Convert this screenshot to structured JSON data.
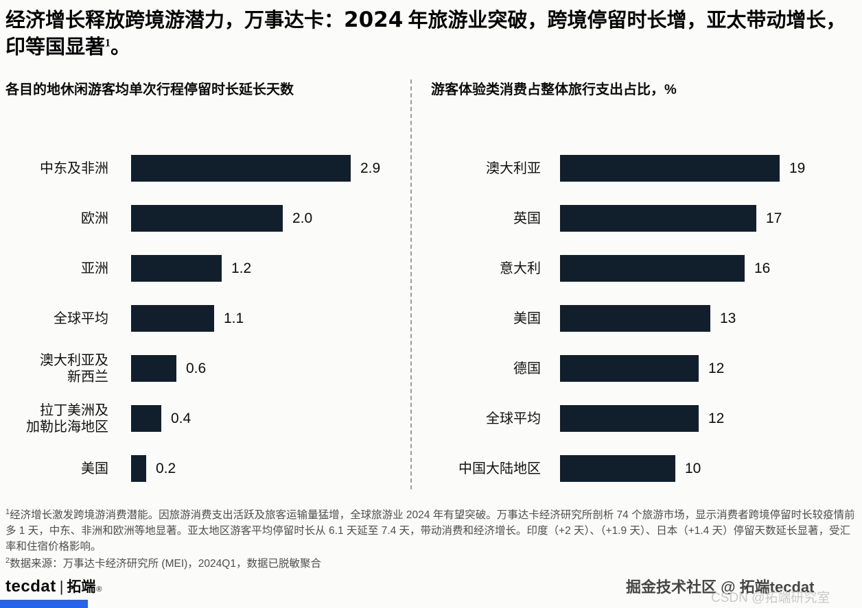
{
  "title": {
    "before_year": "经济增长释放跨境游潜力，万事达卡：",
    "year": "2024",
    "after_year": " 年旅游业突破，跨境停留时长增，亚太带动增长，印等国显著",
    "footnote_marker": "1",
    "suffix": "。"
  },
  "chart_data": [
    {
      "type": "bar",
      "orientation": "horizontal",
      "title": "各目的地休闲游客均单次行程停留时长延长天数",
      "categories": [
        "中东及非洲",
        "欧洲",
        "亚洲",
        "全球平均",
        "澳大利亚及\n新西兰",
        "拉丁美洲及\n加勒比海地区",
        "美国"
      ],
      "values": [
        2.9,
        2.0,
        1.2,
        1.1,
        0.6,
        0.4,
        0.2
      ],
      "value_labels": [
        "2.9",
        "2.0",
        "1.2",
        "1.1",
        "0.6",
        "0.4",
        "0.2"
      ],
      "xlim": [
        0,
        2.9
      ],
      "unit": "天",
      "bar_color": "#101f2b",
      "grid": false,
      "legend": "none"
    },
    {
      "type": "bar",
      "orientation": "horizontal",
      "title": "游客体验类消费占整体旅行支出占比，%",
      "categories": [
        "澳大利亚",
        "英国",
        "意大利",
        "美国",
        "德国",
        "全球平均",
        "中国大陆地区"
      ],
      "values": [
        19,
        17,
        16,
        13,
        12,
        12,
        10
      ],
      "value_labels": [
        "19",
        "17",
        "16",
        "13",
        "12",
        "12",
        "10"
      ],
      "xlim": [
        0,
        19
      ],
      "unit": "%",
      "bar_color": "#101f2b",
      "grid": false,
      "legend": "none"
    }
  ],
  "footnotes": [
    {
      "marker": "1",
      "text": "经济增长激发跨境游消费潜能。因旅游消费支出活跃及旅客运输量猛增，全球旅游业 2024 年有望突破。万事达卡经济研究所剖析 74 个旅游市场，显示消费者跨境停留时长较疫情前多 1 天，中东、非洲和欧洲等地显著。亚太地区游客平均停留时长从 6.1 天延至 7.4 天，带动消费和经济增长。印度（+2 天）、（+1.9 天）、日本（+1.4 天）停留天数延长显著，受汇率和住宿价格影响。"
    },
    {
      "marker": "2",
      "text": "数据来源：万事达卡经济研究所 (MEI)，2024Q1，数据已脱敏聚合"
    }
  ],
  "footer": {
    "logo_text": "tecdat",
    "logo_separator": "|",
    "logo_cn": "拓端",
    "logo_reg": "®"
  },
  "watermarks": {
    "wm1": "掘金技术社区 @ 拓端tecdat",
    "wm2": "CSDN @拓端研究室"
  },
  "colors": {
    "bar": "#101f2b",
    "accent_blue": "#2563eb",
    "divider": "#9a9a9a",
    "footnote_text": "#4e4e4e"
  }
}
